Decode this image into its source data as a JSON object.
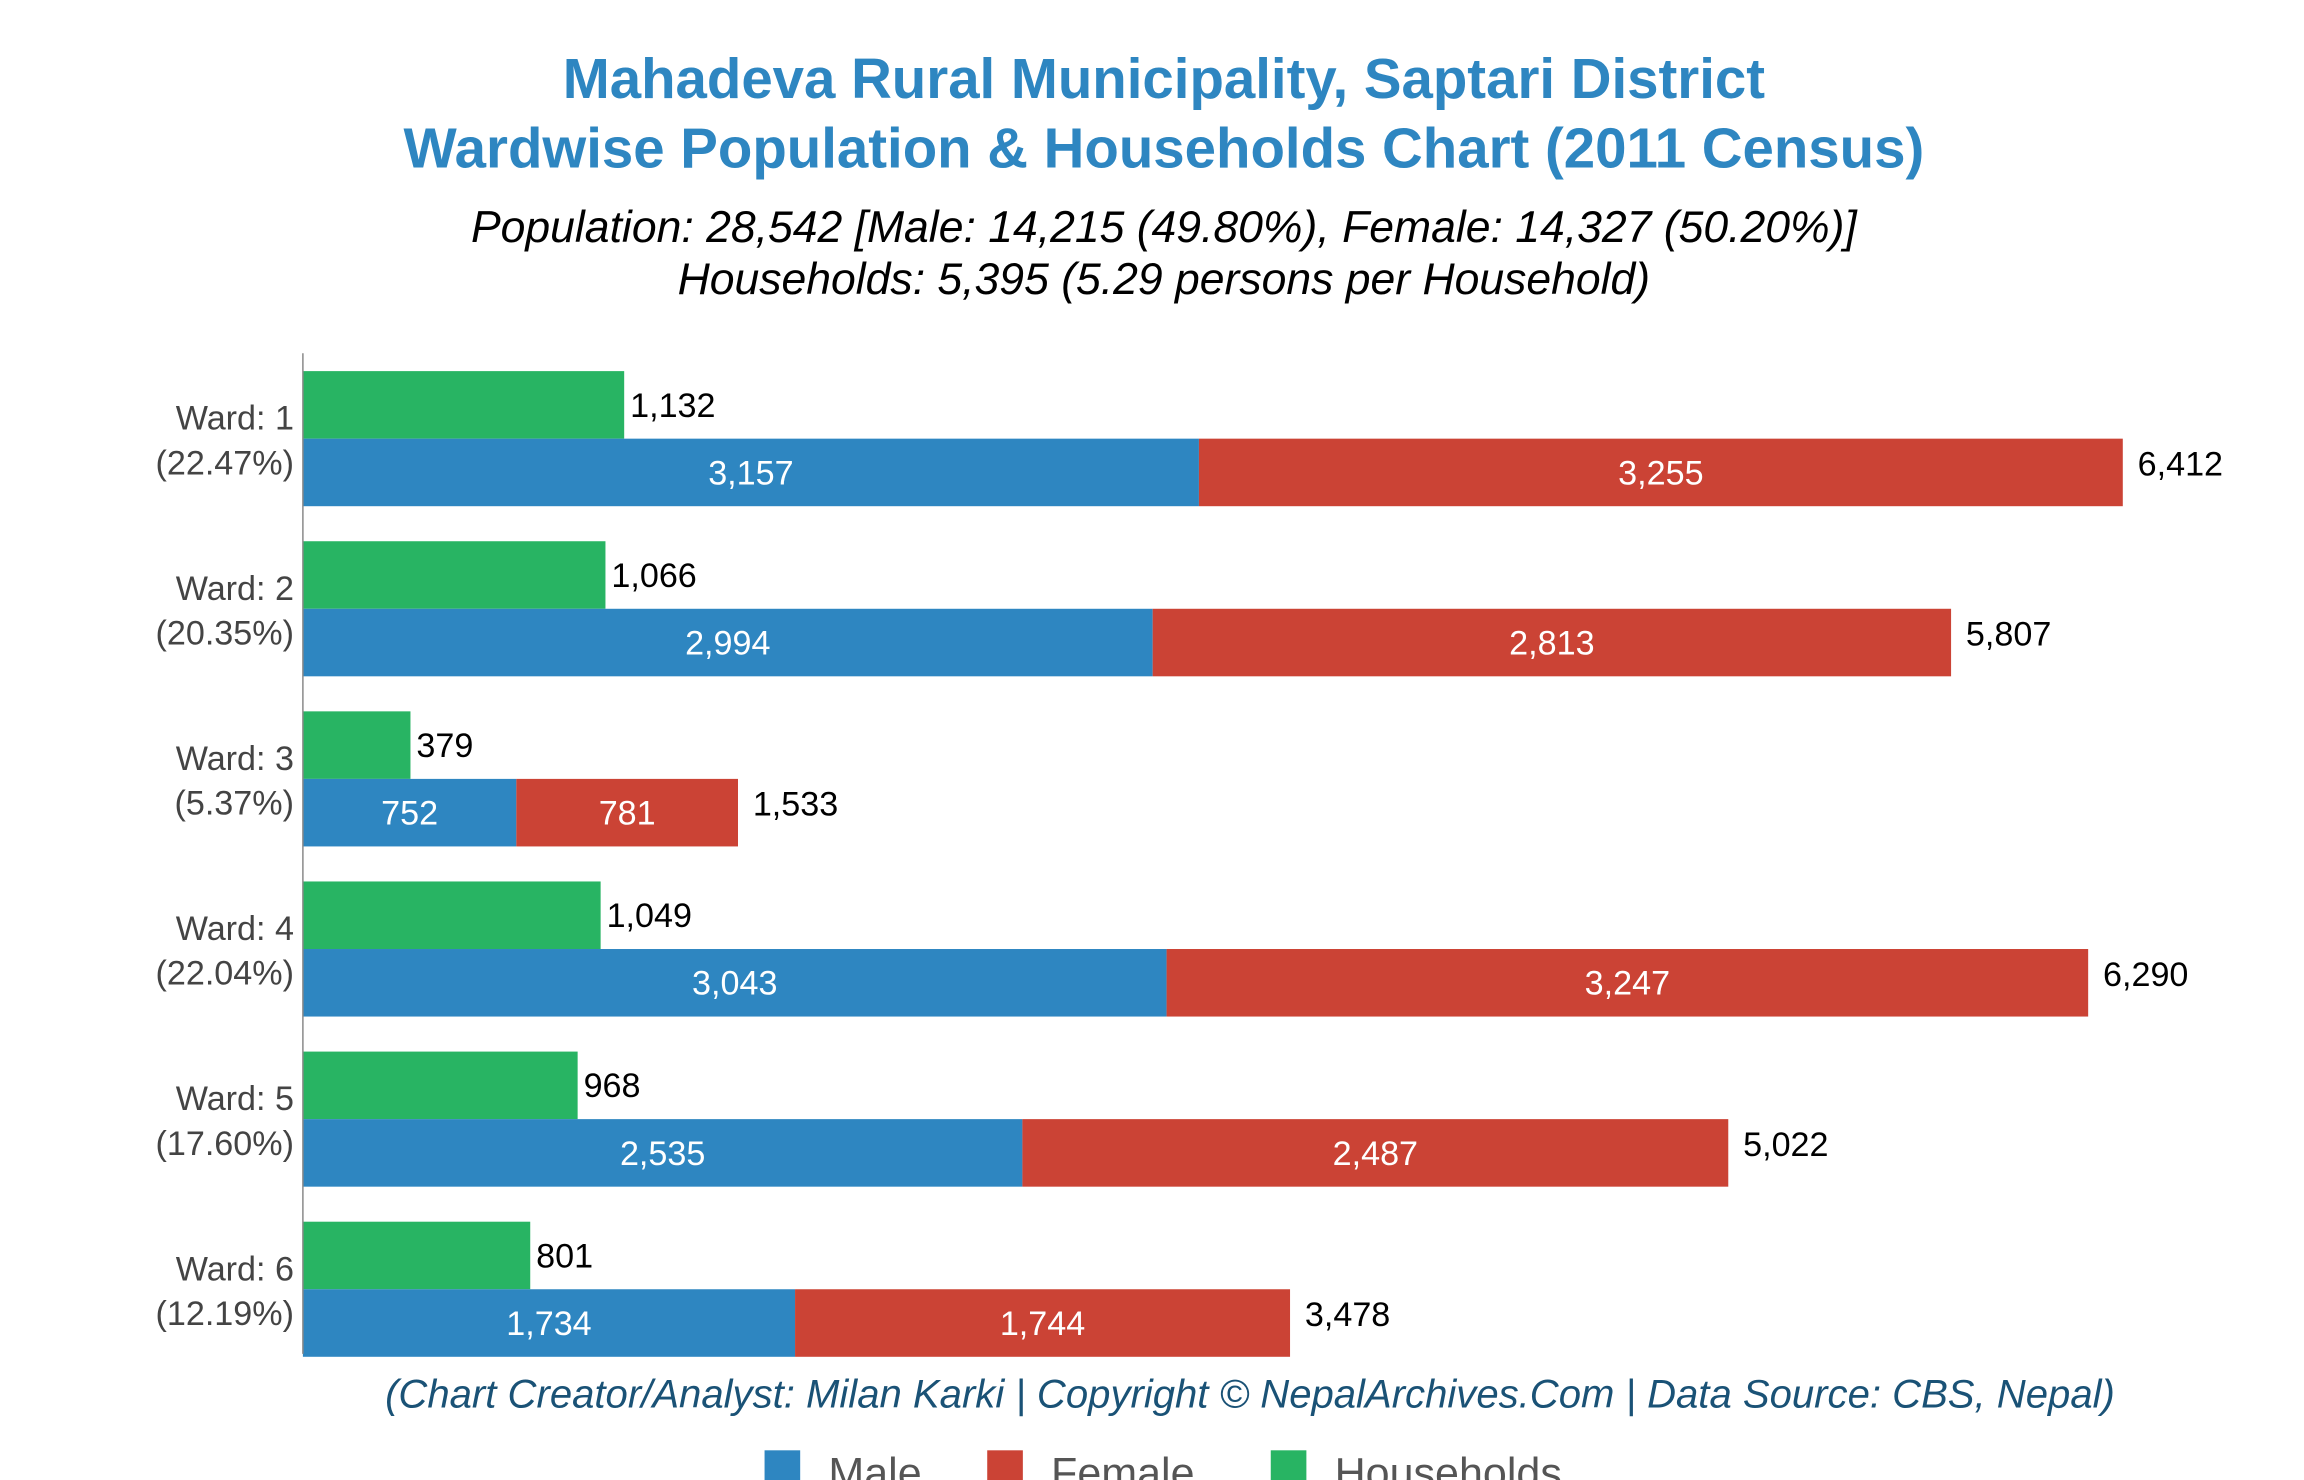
{
  "chart_data": {
    "type": "bar",
    "orientation": "horizontal",
    "stacked_population": true,
    "title": [
      "Mahadeva Rural Municipality, Saptari District",
      "Wardwise Population & Households Chart (2011 Census)"
    ],
    "subtitle": [
      "Population: 28,542 [Male: 14,215 (49.80%), Female: 14,327 (50.20%)]",
      "Households: 5,395 (5.29 persons per Household)"
    ],
    "footer": "(Chart Creator/Analyst: Milan Karki | Copyright © NepalArchives.Com | Data Source: CBS, Nepal)",
    "categories": [
      "Ward: 1",
      "Ward: 2",
      "Ward: 3",
      "Ward: 4",
      "Ward: 5",
      "Ward: 6"
    ],
    "category_shares": [
      "(22.47%)",
      "(20.35%)",
      "(5.37%)",
      "(22.04%)",
      "(17.60%)",
      "(12.19%)"
    ],
    "series": [
      {
        "name": "Male",
        "color": "#2e86c1",
        "values": [
          3157,
          2994,
          752,
          3043,
          2535,
          1734
        ]
      },
      {
        "name": "Female",
        "color": "#cb4335",
        "values": [
          3255,
          2813,
          781,
          3247,
          2487,
          1744
        ]
      },
      {
        "name": "Households",
        "color": "#28b463",
        "values": [
          1132,
          1066,
          379,
          1049,
          968,
          801
        ]
      }
    ],
    "totals": [
      6412,
      5807,
      1533,
      6290,
      5022,
      3478
    ],
    "legend": [
      "Male",
      "Female",
      "Households"
    ],
    "legend_position": "bottom",
    "grid": false
  }
}
